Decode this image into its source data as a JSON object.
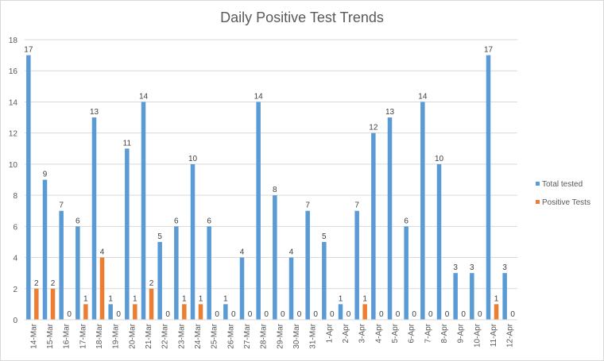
{
  "chart_data": {
    "type": "bar",
    "title": "Daily Positive Test Trends",
    "xlabel": "",
    "ylabel": "",
    "ylim": [
      0,
      18
    ],
    "yticks": [
      0,
      2,
      4,
      6,
      8,
      10,
      12,
      14,
      16,
      18
    ],
    "grid": true,
    "legend_position": "right",
    "categories": [
      "14-Mar",
      "15-Mar",
      "16-Mar",
      "17-Mar",
      "18-Mar",
      "19-Mar",
      "20-Mar",
      "21-Mar",
      "22-Mar",
      "23-Mar",
      "24-Mar",
      "25-Mar",
      "26-Mar",
      "27-Mar",
      "28-Mar",
      "29-Mar",
      "30-Mar",
      "31-Mar",
      "1-Apr",
      "2-Apr",
      "3-Apr",
      "4-Apr",
      "5-Apr",
      "6-Apr",
      "7-Apr",
      "8-Apr",
      "9-Apr",
      "10-Apr",
      "11-Apr",
      "12-Apr"
    ],
    "series": [
      {
        "name": "Total tested",
        "color": "#5b9bd5",
        "values": [
          17,
          9,
          7,
          6,
          13,
          1,
          11,
          14,
          5,
          6,
          10,
          6,
          1,
          4,
          14,
          8,
          4,
          7,
          5,
          1,
          7,
          12,
          13,
          6,
          14,
          10,
          3,
          3,
          17,
          3
        ]
      },
      {
        "name": "Positive Tests",
        "color": "#ed7d31",
        "values": [
          2,
          2,
          0,
          1,
          4,
          0,
          1,
          2,
          0,
          1,
          1,
          0,
          0,
          0,
          0,
          0,
          0,
          0,
          0,
          0,
          1,
          0,
          0,
          0,
          0,
          0,
          0,
          0,
          1,
          0
        ]
      }
    ]
  }
}
